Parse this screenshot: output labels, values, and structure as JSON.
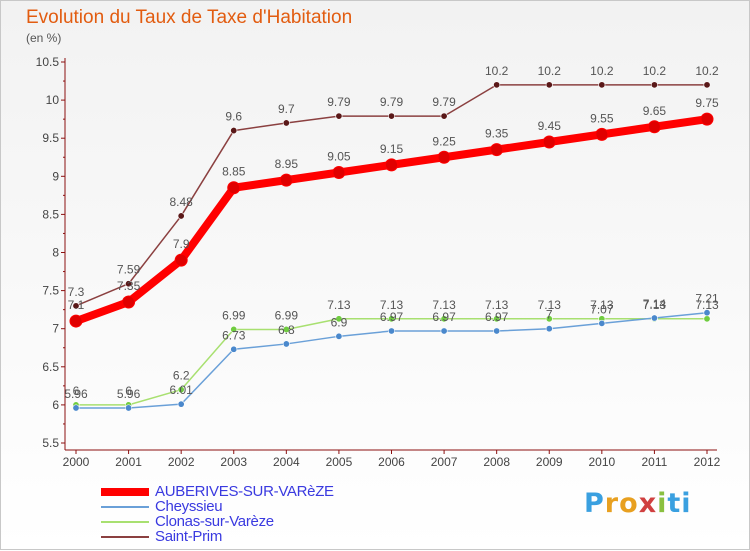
{
  "title": "Evolution du Taux de Taxe d'Habitation",
  "unit_label": "(en %)",
  "brand": {
    "text": "Proxiti",
    "colors": [
      "#3aa0e0",
      "#e8a020",
      "#e8a020",
      "#d04040",
      "#8ac040",
      "#3aa0e0",
      "#3aa0e0"
    ]
  },
  "chart_data": {
    "type": "line",
    "x": [
      "2000",
      "2001",
      "2002",
      "2003",
      "2004",
      "2005",
      "2006",
      "2007",
      "2008",
      "2009",
      "2010",
      "2011",
      "2012"
    ],
    "ylim": [
      5.5,
      10.5
    ],
    "yticks": [
      "5.5",
      "6",
      "6.5",
      "7",
      "7.5",
      "8",
      "8.5",
      "9",
      "9.5",
      "10",
      "10.5"
    ],
    "grid": false,
    "legend_position": "bottom-left",
    "series": [
      {
        "name": "AUBERIVES-SUR-VARèZE",
        "color": "#ff0000",
        "marker": "#e00000",
        "values": [
          7.1,
          7.35,
          7.9,
          8.85,
          8.95,
          9.05,
          9.15,
          9.25,
          9.35,
          9.45,
          9.55,
          9.65,
          9.75
        ],
        "labels": [
          "7.1",
          "7.35",
          "7.9",
          "8.85",
          "8.95",
          "9.05",
          "9.15",
          "9.25",
          "9.35",
          "9.45",
          "9.55",
          "9.65",
          "9.75"
        ]
      },
      {
        "name": "Cheyssieu",
        "color": "#6aa0d8",
        "marker": "#4a88cc",
        "values": [
          5.96,
          5.96,
          6.01,
          6.73,
          6.8,
          6.9,
          6.97,
          6.97,
          6.97,
          7.0,
          7.07,
          7.14,
          7.21
        ],
        "labels": [
          "5.96",
          "5.96",
          "6.01",
          "6.73",
          "6.8",
          "6.9",
          "6.97",
          "6.97",
          "6.97",
          "7",
          "7.07",
          "7.14",
          "7.21"
        ]
      },
      {
        "name": "Clonas-sur-Varèze",
        "color": "#a8e070",
        "marker": "#70cc40",
        "values": [
          6.0,
          6.0,
          6.2,
          6.99,
          6.99,
          7.13,
          7.13,
          7.13,
          7.13,
          7.13,
          7.13,
          7.13,
          7.13
        ],
        "labels": [
          "6",
          "6",
          "6.2",
          "6.99",
          "6.99",
          "7.13",
          "7.13",
          "7.13",
          "7.13",
          "7.13",
          "7.13",
          "7.13",
          "7.13"
        ]
      },
      {
        "name": "Saint-Prim",
        "color": "#8b4040",
        "marker": "#5a1818",
        "values": [
          7.3,
          7.59,
          8.48,
          9.6,
          9.7,
          9.79,
          9.79,
          9.79,
          10.2,
          10.2,
          10.2,
          10.2,
          10.2
        ],
        "labels": [
          "7.3",
          "7.59",
          "8.48",
          "9.6",
          "9.7",
          "9.79",
          "9.79",
          "9.79",
          "10.2",
          "10.2",
          "10.2",
          "10.2",
          "10.2"
        ]
      }
    ]
  }
}
